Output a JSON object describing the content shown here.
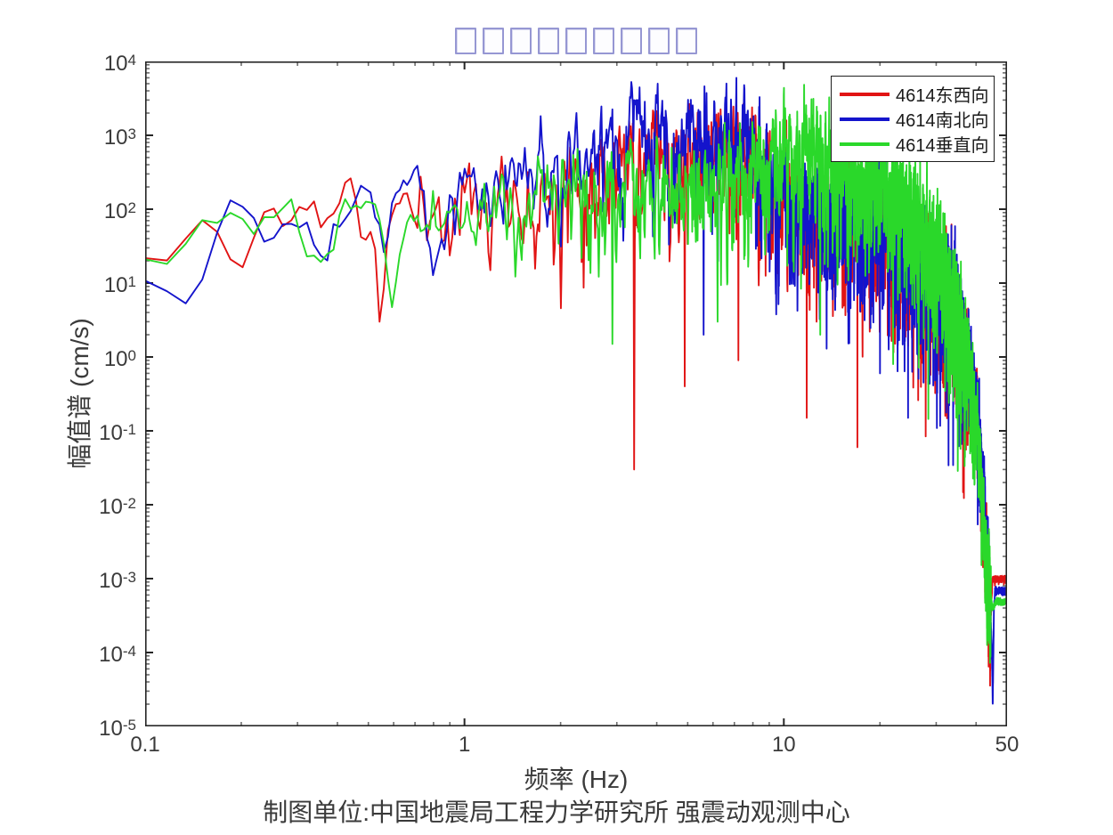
{
  "title": {
    "text": "□□□□□□□□□",
    "glyph_count": 9,
    "box_color": "#9697d3",
    "note_visible_as": "nine unrendered glyph boxes"
  },
  "caption": {
    "text": "制图单位:中国地震局工程力学研究所 强震动观测中心"
  },
  "colors": {
    "axis": "#262626",
    "minor_tick": "#6e6e6e",
    "text": "#3a3a3a",
    "background": "#ffffff",
    "series_red": "#e11414",
    "series_blue": "#1414cc",
    "series_green": "#2ad82a"
  },
  "legend": {
    "position": "top-right",
    "entries": [
      {
        "label": "4614东西向",
        "color": "#e11414"
      },
      {
        "label": "4614南北向",
        "color": "#1414cc"
      },
      {
        "label": "4614垂直向",
        "color": "#2ad82a"
      }
    ]
  },
  "chart_data": {
    "type": "line",
    "title": "□□□□□□□□□",
    "xlabel": "频率 (Hz)",
    "ylabel": "幅值谱 (cm/s)",
    "xscale": "log",
    "yscale": "log",
    "xlim": [
      0.1,
      50
    ],
    "ylim": [
      1e-05,
      10000
    ],
    "grid": false,
    "legend_position": "top-right",
    "x_major_ticks": [
      0.1,
      1,
      10,
      50
    ],
    "x_tick_labels": [
      "0.1",
      "1",
      "10",
      "50"
    ],
    "y_major_tick_exponents": [
      4,
      3,
      2,
      1,
      0,
      -1,
      -2,
      -3,
      -4,
      -5
    ],
    "sampling": {
      "f_start_hz": 0.1,
      "f_end_hz": 50,
      "df_hz": 0.017
    },
    "series": [
      {
        "name": "4614东西向",
        "color": "#e11414",
        "backbone": [
          [
            0.1,
            20
          ],
          [
            0.11,
            14
          ],
          [
            0.12,
            22
          ],
          [
            0.135,
            35
          ],
          [
            0.15,
            65
          ],
          [
            0.165,
            90
          ],
          [
            0.18,
            40
          ],
          [
            0.2,
            11
          ],
          [
            0.215,
            45
          ],
          [
            0.23,
            90
          ],
          [
            0.25,
            110
          ],
          [
            0.27,
            45
          ],
          [
            0.3,
            130
          ],
          [
            0.33,
            160
          ],
          [
            0.36,
            60
          ],
          [
            0.4,
            170
          ],
          [
            0.44,
            210
          ],
          [
            0.47,
            90
          ],
          [
            0.5,
            50
          ],
          [
            0.53,
            20
          ],
          [
            0.55,
            3.5
          ],
          [
            0.58,
            60
          ],
          [
            0.62,
            140
          ],
          [
            0.66,
            160
          ],
          [
            0.7,
            70
          ],
          [
            0.75,
            130
          ],
          [
            0.8,
            210
          ],
          [
            0.85,
            120
          ],
          [
            0.9,
            70
          ],
          [
            0.95,
            110
          ],
          [
            1.0,
            160
          ],
          [
            1.1,
            240
          ],
          [
            1.2,
            90
          ],
          [
            1.3,
            210
          ],
          [
            1.4,
            120
          ],
          [
            1.5,
            140
          ],
          [
            1.7,
            300
          ],
          [
            1.9,
            160
          ],
          [
            2.1,
            380
          ],
          [
            2.4,
            240
          ],
          [
            2.7,
            480
          ],
          [
            3.0,
            300
          ],
          [
            3.3,
            650
          ],
          [
            3.6,
            420
          ],
          [
            4.0,
            560
          ],
          [
            4.5,
            360
          ],
          [
            5.0,
            480
          ],
          [
            5.5,
            580
          ],
          [
            6.0,
            420
          ],
          [
            6.5,
            640
          ],
          [
            7.0,
            500
          ],
          [
            7.5,
            780
          ],
          [
            8.0,
            560
          ],
          [
            8.5,
            320
          ],
          [
            9.0,
            210
          ],
          [
            10,
            160
          ],
          [
            11,
            110
          ],
          [
            12,
            85
          ],
          [
            13,
            120
          ],
          [
            14,
            65
          ],
          [
            15,
            100
          ],
          [
            16,
            62
          ],
          [
            17,
            85
          ],
          [
            18,
            45
          ],
          [
            20,
            62
          ],
          [
            22,
            32
          ],
          [
            24,
            42
          ],
          [
            26,
            22
          ],
          [
            28,
            16
          ],
          [
            30,
            11
          ],
          [
            32,
            6
          ],
          [
            34,
            3.5
          ],
          [
            36,
            1.8
          ],
          [
            38,
            0.8
          ],
          [
            40,
            0.2
          ],
          [
            41,
            0.05
          ],
          [
            42,
            0.012
          ],
          [
            43,
            0.004
          ],
          [
            44,
            0.0008
          ],
          [
            44.5,
            0.0003
          ],
          [
            45,
            0.001
          ],
          [
            50,
            0.001
          ]
        ],
        "spikes": [
          [
            0.55,
            3
          ],
          [
            3.4,
            0.03
          ],
          [
            4.9,
            0.4
          ],
          [
            7.2,
            0.9
          ],
          [
            11.8,
            0.15
          ],
          [
            17,
            0.06
          ],
          [
            30,
            1.2
          ]
        ],
        "noise": {
          "seed": 11,
          "ar": 0.55,
          "sigma_bands": [
            [
              0.1,
              0.7,
              0.12
            ],
            [
              0.7,
              2,
              0.26
            ],
            [
              2,
              8,
              0.33
            ],
            [
              8,
              20,
              0.38
            ],
            [
              20,
              38,
              0.42
            ],
            [
              38,
              44.5,
              0.28
            ],
            [
              44.5,
              50,
              0.02
            ]
          ]
        },
        "tail_amp_cm_s": 0.001
      },
      {
        "name": "4614南北向",
        "color": "#1414cc",
        "backbone": [
          [
            0.1,
            17
          ],
          [
            0.11,
            10
          ],
          [
            0.125,
            6
          ],
          [
            0.14,
            14
          ],
          [
            0.16,
            35
          ],
          [
            0.18,
            140
          ],
          [
            0.2,
            210
          ],
          [
            0.22,
            160
          ],
          [
            0.24,
            100
          ],
          [
            0.26,
            180
          ],
          [
            0.28,
            220
          ],
          [
            0.3,
            140
          ],
          [
            0.33,
            60
          ],
          [
            0.36,
            22
          ],
          [
            0.4,
            90
          ],
          [
            0.44,
            160
          ],
          [
            0.48,
            210
          ],
          [
            0.52,
            110
          ],
          [
            0.56,
            45
          ],
          [
            0.6,
            120
          ],
          [
            0.65,
            200
          ],
          [
            0.7,
            230
          ],
          [
            0.75,
            130
          ],
          [
            0.8,
            65
          ],
          [
            0.85,
            150
          ],
          [
            0.9,
            210
          ],
          [
            0.95,
            140
          ],
          [
            1.0,
            110
          ],
          [
            1.1,
            290
          ],
          [
            1.2,
            160
          ],
          [
            1.3,
            340
          ],
          [
            1.4,
            200
          ],
          [
            1.5,
            240
          ],
          [
            1.7,
            390
          ],
          [
            1.9,
            260
          ],
          [
            2.1,
            480
          ],
          [
            2.4,
            340
          ],
          [
            2.7,
            650
          ],
          [
            3.0,
            480
          ],
          [
            3.3,
            1400
          ],
          [
            3.6,
            760
          ],
          [
            4.0,
            950
          ],
          [
            4.5,
            680
          ],
          [
            5.0,
            850
          ],
          [
            5.5,
            1100
          ],
          [
            6.0,
            780
          ],
          [
            6.5,
            950
          ],
          [
            7.0,
            680
          ],
          [
            7.5,
            850
          ],
          [
            8.0,
            580
          ],
          [
            8.5,
            380
          ],
          [
            9.0,
            240
          ],
          [
            10,
            150
          ],
          [
            11,
            120
          ],
          [
            12,
            92
          ],
          [
            13,
            125
          ],
          [
            14,
            72
          ],
          [
            15,
            105
          ],
          [
            16,
            68
          ],
          [
            17,
            88
          ],
          [
            18,
            50
          ],
          [
            20,
            68
          ],
          [
            22,
            36
          ],
          [
            24,
            45
          ],
          [
            26,
            25
          ],
          [
            28,
            18
          ],
          [
            30,
            12
          ],
          [
            32,
            7
          ],
          [
            34,
            4.5
          ],
          [
            36,
            2.2
          ],
          [
            38,
            1.0
          ],
          [
            40,
            0.28
          ],
          [
            41,
            0.06
          ],
          [
            42,
            0.014
          ],
          [
            43,
            0.0035
          ],
          [
            44,
            0.0009
          ],
          [
            44.8,
            0.00012
          ],
          [
            45.1,
            2e-05
          ],
          [
            45.5,
            0.0004
          ],
          [
            45.9,
            0.0007
          ],
          [
            50,
            0.0007
          ]
        ],
        "spikes": [
          [
            5.6,
            2
          ],
          [
            20,
            0.6
          ],
          [
            24.5,
            0.15
          ],
          [
            33,
            0.5
          ]
        ],
        "noise": {
          "seed": 22,
          "ar": 0.55,
          "sigma_bands": [
            [
              0.1,
              0.7,
              0.12
            ],
            [
              0.7,
              2,
              0.26
            ],
            [
              2,
              8,
              0.33
            ],
            [
              8,
              20,
              0.38
            ],
            [
              20,
              38,
              0.42
            ],
            [
              38,
              44.5,
              0.28
            ],
            [
              44.5,
              50,
              0.02
            ]
          ]
        },
        "tail_amp_cm_s": 0.0007,
        "deep_notch": {
          "freq_hz": 45.1,
          "amp_cm_s": 2e-05
        }
      },
      {
        "name": "4614垂直向",
        "color": "#2ad82a",
        "backbone": [
          [
            0.1,
            22
          ],
          [
            0.12,
            17
          ],
          [
            0.14,
            28
          ],
          [
            0.16,
            75
          ],
          [
            0.18,
            95
          ],
          [
            0.2,
            60
          ],
          [
            0.22,
            30
          ],
          [
            0.25,
            75
          ],
          [
            0.28,
            95
          ],
          [
            0.3,
            55
          ],
          [
            0.33,
            26
          ],
          [
            0.36,
            9
          ],
          [
            0.4,
            55
          ],
          [
            0.44,
            95
          ],
          [
            0.5,
            115
          ],
          [
            0.55,
            60
          ],
          [
            0.6,
            4.5
          ],
          [
            0.65,
            75
          ],
          [
            0.7,
            100
          ],
          [
            0.75,
            60
          ],
          [
            0.8,
            115
          ],
          [
            0.85,
            80
          ],
          [
            0.9,
            100
          ],
          [
            1.0,
            78
          ],
          [
            1.1,
            115
          ],
          [
            1.2,
            58
          ],
          [
            1.3,
            95
          ],
          [
            1.5,
            78
          ],
          [
            1.7,
            140
          ],
          [
            1.9,
            95
          ],
          [
            2.1,
            180
          ],
          [
            2.4,
            115
          ],
          [
            2.7,
            230
          ],
          [
            3.0,
            140
          ],
          [
            3.3,
            280
          ],
          [
            3.6,
            190
          ],
          [
            4.0,
            240
          ],
          [
            4.5,
            150
          ],
          [
            5.0,
            195
          ],
          [
            5.5,
            280
          ],
          [
            6.0,
            195
          ],
          [
            6.5,
            330
          ],
          [
            7.0,
            240
          ],
          [
            7.5,
            380
          ],
          [
            8.0,
            290
          ],
          [
            8.5,
            340
          ],
          [
            9.0,
            400
          ],
          [
            10,
            560
          ],
          [
            11,
            820
          ],
          [
            12,
            560
          ],
          [
            13,
            400
          ],
          [
            14,
            310
          ],
          [
            15,
            340
          ],
          [
            16,
            250
          ],
          [
            17,
            290
          ],
          [
            18,
            210
          ],
          [
            20,
            240
          ],
          [
            22,
            150
          ],
          [
            24,
            100
          ],
          [
            26,
            62
          ],
          [
            28,
            40
          ],
          [
            30,
            26
          ],
          [
            32,
            13
          ],
          [
            34,
            6
          ],
          [
            36,
            2.2
          ],
          [
            38,
            0.7
          ],
          [
            40,
            0.16
          ],
          [
            41,
            0.045
          ],
          [
            42,
            0.009
          ],
          [
            43,
            0.0025
          ],
          [
            44,
            0.0009
          ],
          [
            45,
            0.0004
          ],
          [
            46,
            0.0005
          ],
          [
            50,
            0.0005
          ]
        ],
        "spikes": [
          [
            2.9,
            1.5
          ],
          [
            6.2,
            3
          ],
          [
            13,
            2
          ],
          [
            22,
            0.8
          ],
          [
            35,
            0.3
          ]
        ],
        "noise": {
          "seed": 33,
          "ar": 0.55,
          "sigma_bands": [
            [
              0.1,
              0.7,
              0.12
            ],
            [
              0.7,
              2,
              0.26
            ],
            [
              2,
              8,
              0.33
            ],
            [
              8,
              20,
              0.38
            ],
            [
              20,
              38,
              0.42
            ],
            [
              38,
              44.5,
              0.28
            ],
            [
              44.5,
              50,
              0.02
            ]
          ]
        },
        "tail_amp_cm_s": 0.0005
      }
    ]
  }
}
